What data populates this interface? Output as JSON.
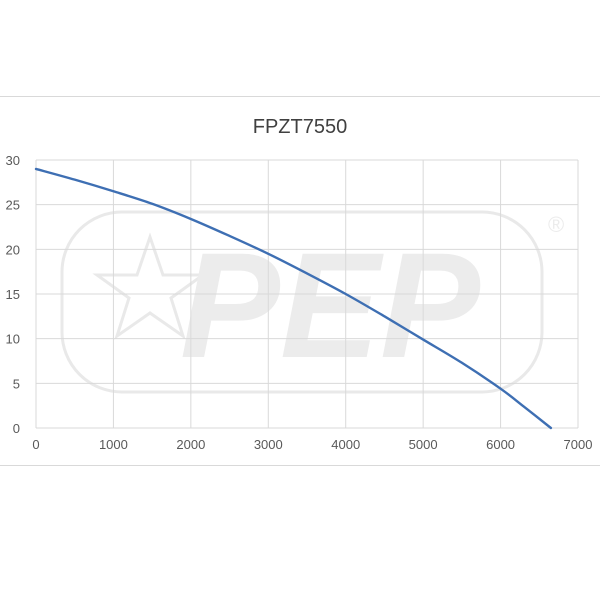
{
  "colors": {
    "series": "#3e6fb3",
    "grid": "#d9d9d9",
    "text": "#595959"
  },
  "watermark": {
    "text": "PEP",
    "registered_mark": "®"
  },
  "chart_data": {
    "type": "line",
    "title": "FPZT7550",
    "xlabel": "",
    "ylabel": "",
    "xlim": [
      0,
      7000
    ],
    "ylim": [
      0,
      30
    ],
    "x_ticks": [
      "0",
      "1000",
      "2000",
      "3000",
      "4000",
      "5000",
      "6000",
      "7000"
    ],
    "y_ticks": [
      "0",
      "5",
      "10",
      "15",
      "20",
      "25",
      "30"
    ],
    "grid": true,
    "legend": "none",
    "series": [
      {
        "x": [
          0,
          500,
          1000,
          1500,
          2000,
          2500,
          3000,
          3500,
          4000,
          4500,
          5000,
          5500,
          6000,
          6300,
          6650
        ],
        "y": [
          29,
          27.8,
          26.5,
          25.1,
          23.4,
          21.5,
          19.5,
          17.3,
          15.0,
          12.5,
          9.9,
          7.3,
          4.4,
          2.4,
          0
        ]
      }
    ]
  }
}
